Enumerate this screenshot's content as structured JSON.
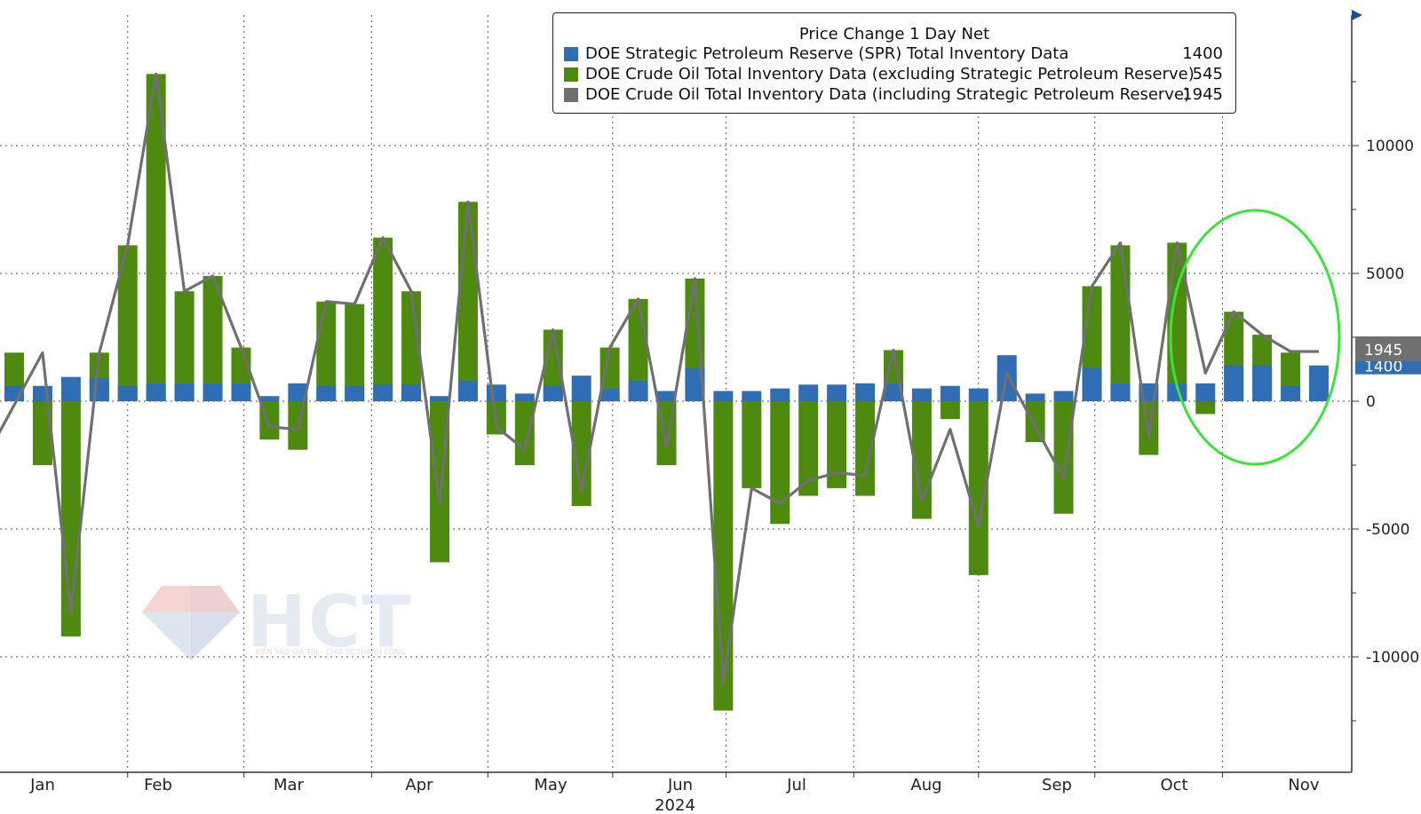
{
  "legend": {
    "title": "Price Change 1 Day Net",
    "items": [
      {
        "label": "DOE Strategic Petroleum Reserve (SPR) Total Inventory Data",
        "value": "1400",
        "color": "#2f6db5"
      },
      {
        "label": "DOE Crude Oil Total Inventory Data (excluding Strategic Petroleum Reserve)",
        "value": "545",
        "color": "#4e8a10"
      },
      {
        "label": "DOE Crude Oil Total Inventory Data (including Strategic Petroleum Reserve)",
        "value": "1945",
        "color": "#707070"
      }
    ]
  },
  "watermark": {
    "text": "HCT",
    "subtext": "KIẾN TẠO GIÁ TRỊ – CHIA SẺ THÀNH CÔNG"
  },
  "chart_data": {
    "type": "bar",
    "title": "Price Change 1 Day Net",
    "xlabel": "2024",
    "ylabel": "",
    "ylim": [
      -14800,
      15000
    ],
    "y_ticks": [
      10000,
      5000,
      0,
      -5000,
      -10000
    ],
    "y_tick_labels": [
      "10000",
      "5000",
      "0",
      "-5000",
      "-10000"
    ],
    "x_month_labels": [
      "Jan",
      "Feb",
      "Mar",
      "Apr",
      "May",
      "Jun",
      "Jul",
      "Aug",
      "Sep",
      "Oct",
      "Nov"
    ],
    "year_label": "2024",
    "last_value_labels": [
      "1945",
      "1400"
    ],
    "series": [
      {
        "name": "DOE Strategic Petroleum Reserve (SPR) Total Inventory Data",
        "color": "#2f6db5",
        "values": [
          600,
          600,
          950,
          900,
          600,
          700,
          700,
          700,
          700,
          200,
          700,
          600,
          600,
          650,
          650,
          200,
          800,
          650,
          300,
          600,
          1000,
          500,
          800,
          400,
          1300,
          400,
          400,
          500,
          650,
          650,
          700,
          700,
          500,
          600,
          500,
          1800,
          300,
          400,
          1300,
          700,
          700,
          700,
          700,
          1400,
          1400,
          600,
          1400
        ]
      },
      {
        "name": "DOE Crude Oil Total Inventory Data (excluding Strategic Petroleum Reserve)",
        "color": "#4e8a10",
        "values": [
          1900,
          -2500,
          -9200,
          1900,
          6100,
          12800,
          4300,
          4900,
          2100,
          -1500,
          -1900,
          3900,
          3800,
          6400,
          4300,
          -6300,
          7800,
          -1300,
          -2500,
          2800,
          -4100,
          2100,
          4000,
          -2500,
          4800,
          -12100,
          -3400,
          -4800,
          -3700,
          -3400,
          -3700,
          2000,
          -4600,
          -700,
          -6800,
          1100,
          -1600,
          -4400,
          4500,
          6100,
          -2100,
          6200,
          -500,
          3500,
          2600,
          1900,
          545
        ]
      },
      {
        "name": "DOE Crude Oil Total Inventory Data (including Strategic Petroleum Reserve)",
        "color": "#707070",
        "values": [
          -1300,
          1900,
          -8300,
          1900,
          6100,
          12800,
          4300,
          4900,
          2100,
          -1000,
          -1100,
          3900,
          3800,
          6400,
          4300,
          -4000,
          7800,
          -1000,
          -1900,
          2800,
          -3500,
          2100,
          4000,
          -1800,
          4800,
          -11000,
          -3400,
          -4000,
          -3100,
          -2800,
          -2900,
          2000,
          -3900,
          -1100,
          -4900,
          1100,
          -1000,
          -3000,
          4500,
          6200,
          -1400,
          6200,
          1100,
          3500,
          2600,
          1945,
          1945
        ]
      }
    ]
  }
}
